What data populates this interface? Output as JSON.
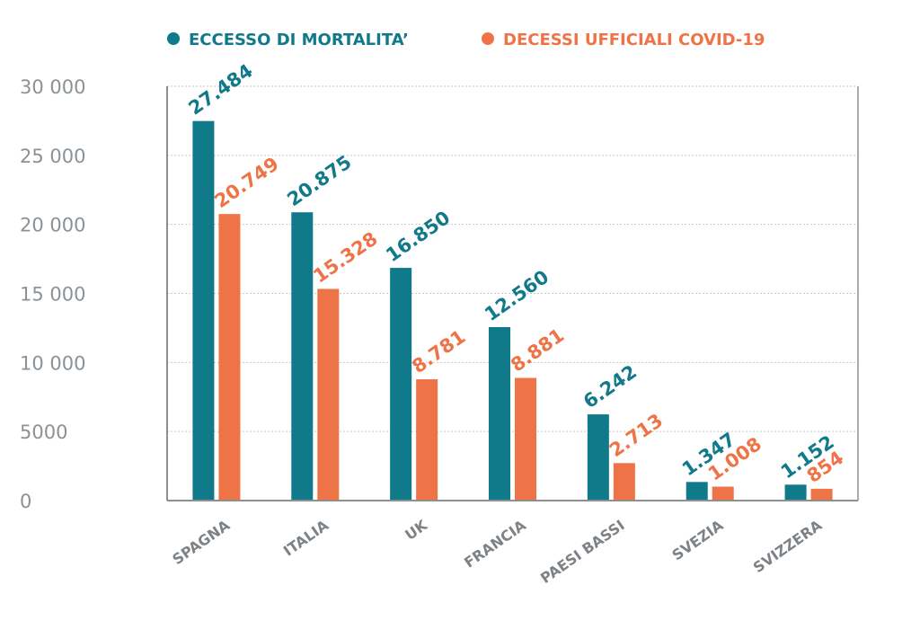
{
  "colors": {
    "series1": "#10798a",
    "series2": "#ee7447",
    "grid": "#c9c9c9",
    "axis": "#8f8f8f"
  },
  "chart_data": {
    "type": "bar",
    "categories": [
      "SPAGNA",
      "ITALIA",
      "UK",
      "FRANCIA",
      "PAESI BASSI",
      "SVEZIA",
      "SVIZZERA"
    ],
    "series": [
      {
        "name": "ECCESSO DI MORTALITA’",
        "values": [
          27484,
          20875,
          16850,
          12560,
          6242,
          1347,
          1152
        ],
        "labels": [
          "27.484",
          "20.875",
          "16.850",
          "12.560",
          "6.242",
          "1.347",
          "1.152"
        ]
      },
      {
        "name": "DECESSI UFFICIALI COVID-19",
        "values": [
          20749,
          15328,
          8781,
          8881,
          2713,
          1008,
          854
        ],
        "labels": [
          "20.749",
          "15.328",
          "8.781",
          "8.881",
          "2.713",
          "1.008",
          "854"
        ]
      }
    ],
    "ylim": [
      0,
      30000
    ],
    "yticks": [
      0,
      5000,
      10000,
      15000,
      20000,
      25000,
      30000
    ],
    "ytick_labels": [
      "0",
      "5000",
      "10 000",
      "15 000",
      "20 000",
      "25 000",
      "30 000"
    ],
    "grid": true,
    "legend": "top"
  }
}
